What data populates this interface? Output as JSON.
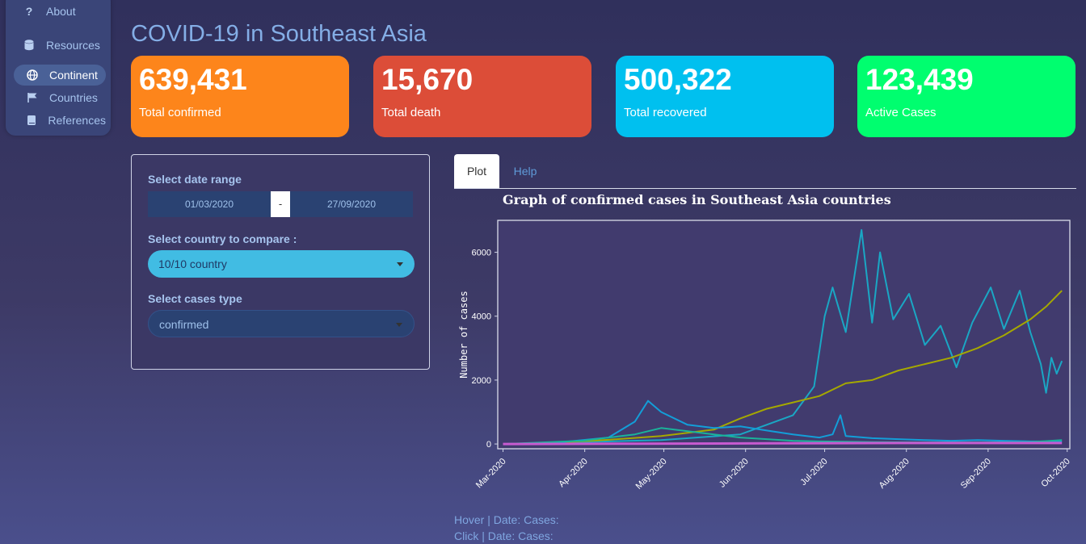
{
  "sidebar": {
    "items": [
      {
        "label": "About",
        "icon": "question-icon"
      },
      {
        "label": "Resources",
        "icon": "database-icon"
      },
      {
        "label": "Continent",
        "icon": "globe-icon",
        "active": true
      },
      {
        "label": "Countries",
        "icon": "flag-icon"
      },
      {
        "label": "References",
        "icon": "book-icon"
      }
    ]
  },
  "header": {
    "title": "COVID-19 in Southeast Asia"
  },
  "cards": [
    {
      "value": "639,431",
      "label": "Total confirmed",
      "color": "#fd851b"
    },
    {
      "value": "15,670",
      "label": "Total death",
      "color": "#dc4d38"
    },
    {
      "value": "500,322",
      "label": "Total recovered",
      "color": "#00c0ef"
    },
    {
      "value": "123,439",
      "label": "Active Cases",
      "color": "#00fe6f"
    }
  ],
  "filters": {
    "date_range_label": "Select date range",
    "date_start": "01/03/2020",
    "date_sep": "-",
    "date_end": "27/09/2020",
    "country_label": "Select country to compare :",
    "country_value": "10/10 country",
    "cases_label": "Select cases type",
    "cases_value": "confirmed"
  },
  "tabs": [
    {
      "label": "Plot",
      "active": true
    },
    {
      "label": "Help",
      "active": false
    }
  ],
  "chart_data": {
    "type": "line",
    "title": "Graph of confirmed cases in Southeast Asia countries",
    "xlabel": "",
    "ylabel": "Number of cases",
    "x_ticks": [
      "Mar-2020",
      "Apr-2020",
      "May-2020",
      "Jun-2020",
      "Jul-2020",
      "Aug-2020",
      "Sep-2020",
      "Oct-2020"
    ],
    "y_ticks": [
      0,
      2000,
      4000,
      6000
    ],
    "ylim": [
      -150,
      7000
    ],
    "xlim_days": [
      -2,
      215
    ],
    "series": [
      {
        "color": "#1aa7c4",
        "points": [
          [
            0,
            0
          ],
          [
            30,
            60
          ],
          [
            60,
            120
          ],
          [
            90,
            300
          ],
          [
            110,
            900
          ],
          [
            118,
            1800
          ],
          [
            122,
            4000
          ],
          [
            125,
            4900
          ],
          [
            130,
            3500
          ],
          [
            136,
            6700
          ],
          [
            140,
            3800
          ],
          [
            143,
            6000
          ],
          [
            148,
            3900
          ],
          [
            154,
            4700
          ],
          [
            160,
            3100
          ],
          [
            166,
            3700
          ],
          [
            172,
            2400
          ],
          [
            178,
            3800
          ],
          [
            185,
            4900
          ],
          [
            190,
            3600
          ],
          [
            196,
            4800
          ],
          [
            200,
            3500
          ],
          [
            204,
            2500
          ],
          [
            206,
            1600
          ],
          [
            208,
            2700
          ],
          [
            210,
            2200
          ],
          [
            212,
            2600
          ]
        ]
      },
      {
        "color": "#a5a800",
        "points": [
          [
            0,
            0
          ],
          [
            20,
            40
          ],
          [
            40,
            130
          ],
          [
            60,
            250
          ],
          [
            80,
            450
          ],
          [
            90,
            800
          ],
          [
            100,
            1100
          ],
          [
            110,
            1300
          ],
          [
            120,
            1500
          ],
          [
            130,
            1900
          ],
          [
            140,
            2000
          ],
          [
            150,
            2300
          ],
          [
            160,
            2500
          ],
          [
            170,
            2700
          ],
          [
            180,
            3000
          ],
          [
            190,
            3400
          ],
          [
            200,
            3900
          ],
          [
            206,
            4300
          ],
          [
            212,
            4800
          ]
        ]
      },
      {
        "color": "#139ed8",
        "points": [
          [
            0,
            0
          ],
          [
            20,
            40
          ],
          [
            40,
            200
          ],
          [
            50,
            700
          ],
          [
            55,
            1350
          ],
          [
            60,
            1000
          ],
          [
            70,
            600
          ],
          [
            80,
            500
          ],
          [
            90,
            550
          ],
          [
            100,
            420
          ],
          [
            110,
            300
          ],
          [
            120,
            200
          ],
          [
            125,
            300
          ],
          [
            128,
            900
          ],
          [
            130,
            250
          ],
          [
            140,
            180
          ],
          [
            150,
            150
          ],
          [
            160,
            120
          ],
          [
            170,
            100
          ],
          [
            180,
            120
          ],
          [
            190,
            100
          ],
          [
            200,
            80
          ],
          [
            212,
            80
          ]
        ]
      },
      {
        "color": "#1ab39a",
        "points": [
          [
            0,
            0
          ],
          [
            30,
            100
          ],
          [
            50,
            300
          ],
          [
            60,
            500
          ],
          [
            70,
            400
          ],
          [
            80,
            300
          ],
          [
            90,
            200
          ],
          [
            100,
            150
          ],
          [
            110,
            100
          ],
          [
            120,
            80
          ],
          [
            140,
            60
          ],
          [
            160,
            50
          ],
          [
            180,
            50
          ],
          [
            200,
            60
          ],
          [
            212,
            120
          ]
        ]
      },
      {
        "color": "#c75ad0",
        "points": [
          [
            0,
            0
          ],
          [
            50,
            10
          ],
          [
            100,
            20
          ],
          [
            150,
            30
          ],
          [
            200,
            30
          ],
          [
            212,
            30
          ]
        ]
      }
    ]
  },
  "readouts": {
    "hover": "Hover | Date: Cases:",
    "click": "Click | Date: Cases:"
  }
}
